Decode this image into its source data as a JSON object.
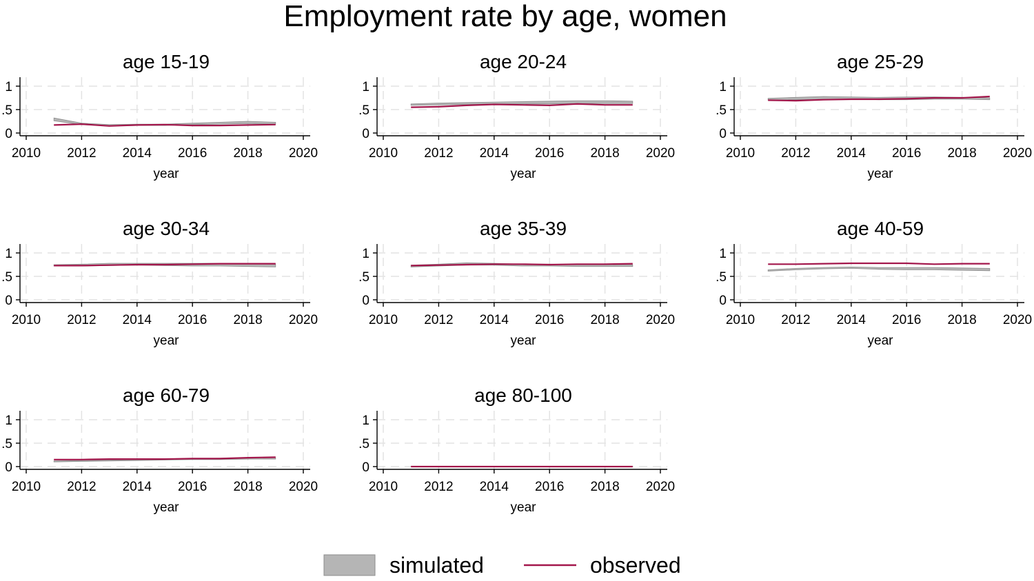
{
  "title": "Employment rate by age, women",
  "legend": {
    "position": "bottom",
    "items": [
      {
        "label": "simulated",
        "kind": "band",
        "color": "#b5b5b5"
      },
      {
        "label": "observed",
        "kind": "line",
        "color": "#a3164b"
      }
    ]
  },
  "colors": {
    "simulated_band": "#b5b5b5",
    "simulated_edge": "#8c8c8c",
    "observed": "#a3164b",
    "grid": "#e3e3e3",
    "axis": "#000000"
  },
  "chart_data": [
    {
      "type": "area",
      "title": "age 15-19",
      "xlabel": "year",
      "ylabel": "",
      "xlim": [
        2010,
        2020
      ],
      "ylim": [
        0,
        1
      ],
      "xticks": [
        "2010",
        "2012",
        "2014",
        "2016",
        "2018",
        "2020"
      ],
      "yticks": [
        "0",
        ".5",
        "1"
      ],
      "grid": true,
      "x": [
        2011,
        2012,
        2013,
        2014,
        2015,
        2016,
        2017,
        2018,
        2019
      ],
      "series": [
        {
          "name": "simulated",
          "kind": "band",
          "lower": [
            0.26,
            0.18,
            0.15,
            0.16,
            0.16,
            0.18,
            0.19,
            0.2,
            0.19
          ],
          "upper": [
            0.32,
            0.21,
            0.18,
            0.19,
            0.19,
            0.21,
            0.23,
            0.25,
            0.23
          ]
        },
        {
          "name": "observed",
          "kind": "line",
          "values": [
            0.17,
            0.19,
            0.15,
            0.17,
            0.18,
            0.16,
            0.16,
            0.17,
            0.18
          ]
        }
      ]
    },
    {
      "type": "area",
      "title": "age 20-24",
      "xlabel": "year",
      "ylabel": "",
      "xlim": [
        2010,
        2020
      ],
      "ylim": [
        0,
        1
      ],
      "xticks": [
        "2010",
        "2012",
        "2014",
        "2016",
        "2018",
        "2020"
      ],
      "yticks": [
        "0",
        ".5",
        "1"
      ],
      "grid": true,
      "x": [
        2011,
        2012,
        2013,
        2014,
        2015,
        2016,
        2017,
        2018,
        2019
      ],
      "series": [
        {
          "name": "simulated",
          "kind": "band",
          "lower": [
            0.59,
            0.6,
            0.61,
            0.62,
            0.62,
            0.62,
            0.63,
            0.63,
            0.63
          ],
          "upper": [
            0.62,
            0.64,
            0.65,
            0.66,
            0.67,
            0.68,
            0.69,
            0.69,
            0.68
          ]
        },
        {
          "name": "observed",
          "kind": "line",
          "values": [
            0.55,
            0.56,
            0.59,
            0.61,
            0.6,
            0.59,
            0.62,
            0.6,
            0.6
          ]
        }
      ]
    },
    {
      "type": "area",
      "title": "age 25-29",
      "xlabel": "year",
      "ylabel": "",
      "xlim": [
        2010,
        2020
      ],
      "ylim": [
        0,
        1
      ],
      "xticks": [
        "2010",
        "2012",
        "2014",
        "2016",
        "2018",
        "2020"
      ],
      "yticks": [
        "0",
        ".5",
        "1"
      ],
      "grid": true,
      "x": [
        2011,
        2012,
        2013,
        2014,
        2015,
        2016,
        2017,
        2018,
        2019
      ],
      "series": [
        {
          "name": "simulated",
          "kind": "band",
          "lower": [
            0.7,
            0.71,
            0.72,
            0.72,
            0.71,
            0.71,
            0.72,
            0.72,
            0.71
          ],
          "upper": [
            0.74,
            0.76,
            0.78,
            0.77,
            0.76,
            0.77,
            0.77,
            0.76,
            0.75
          ]
        },
        {
          "name": "observed",
          "kind": "line",
          "values": [
            0.7,
            0.69,
            0.71,
            0.72,
            0.72,
            0.73,
            0.75,
            0.75,
            0.78
          ]
        }
      ]
    },
    {
      "type": "area",
      "title": "age 30-34",
      "xlabel": "year",
      "ylabel": "",
      "xlim": [
        2010,
        2020
      ],
      "ylim": [
        0,
        1
      ],
      "xticks": [
        "2010",
        "2012",
        "2014",
        "2016",
        "2018",
        "2020"
      ],
      "yticks": [
        "0",
        ".5",
        "1"
      ],
      "grid": true,
      "x": [
        2011,
        2012,
        2013,
        2014,
        2015,
        2016,
        2017,
        2018,
        2019
      ],
      "series": [
        {
          "name": "simulated",
          "kind": "band",
          "lower": [
            0.72,
            0.72,
            0.73,
            0.74,
            0.73,
            0.72,
            0.72,
            0.71,
            0.7
          ],
          "upper": [
            0.75,
            0.76,
            0.78,
            0.78,
            0.78,
            0.78,
            0.78,
            0.77,
            0.76
          ]
        },
        {
          "name": "observed",
          "kind": "line",
          "values": [
            0.73,
            0.73,
            0.74,
            0.75,
            0.75,
            0.76,
            0.77,
            0.77,
            0.77
          ]
        }
      ]
    },
    {
      "type": "area",
      "title": "age 35-39",
      "xlabel": "year",
      "ylabel": "",
      "xlim": [
        2010,
        2020
      ],
      "ylim": [
        0,
        1
      ],
      "xticks": [
        "2010",
        "2012",
        "2014",
        "2016",
        "2018",
        "2020"
      ],
      "yticks": [
        "0",
        ".5",
        "1"
      ],
      "grid": true,
      "x": [
        2011,
        2012,
        2013,
        2014,
        2015,
        2016,
        2017,
        2018,
        2019
      ],
      "series": [
        {
          "name": "simulated",
          "kind": "band",
          "lower": [
            0.7,
            0.72,
            0.74,
            0.74,
            0.72,
            0.72,
            0.71,
            0.71,
            0.71
          ],
          "upper": [
            0.74,
            0.76,
            0.79,
            0.78,
            0.76,
            0.76,
            0.75,
            0.75,
            0.75
          ]
        },
        {
          "name": "observed",
          "kind": "line",
          "values": [
            0.73,
            0.74,
            0.75,
            0.76,
            0.76,
            0.75,
            0.76,
            0.76,
            0.77
          ]
        }
      ]
    },
    {
      "type": "area",
      "title": "age 40-59",
      "xlabel": "year",
      "ylabel": "",
      "xlim": [
        2010,
        2020
      ],
      "ylim": [
        0,
        1
      ],
      "xticks": [
        "2010",
        "2012",
        "2014",
        "2016",
        "2018",
        "2020"
      ],
      "yticks": [
        "0",
        ".5",
        "1"
      ],
      "grid": true,
      "x": [
        2011,
        2012,
        2013,
        2014,
        2015,
        2016,
        2017,
        2018,
        2019
      ],
      "series": [
        {
          "name": "simulated",
          "kind": "band",
          "lower": [
            0.61,
            0.64,
            0.66,
            0.67,
            0.65,
            0.64,
            0.64,
            0.63,
            0.62
          ],
          "upper": [
            0.64,
            0.67,
            0.69,
            0.7,
            0.69,
            0.69,
            0.69,
            0.68,
            0.67
          ]
        },
        {
          "name": "observed",
          "kind": "line",
          "values": [
            0.76,
            0.76,
            0.77,
            0.78,
            0.78,
            0.78,
            0.76,
            0.77,
            0.77
          ]
        }
      ]
    },
    {
      "type": "area",
      "title": "age 60-79",
      "xlabel": "year",
      "ylabel": "",
      "xlim": [
        2010,
        2020
      ],
      "ylim": [
        0,
        1
      ],
      "xticks": [
        "2010",
        "2012",
        "2014",
        "2016",
        "2018",
        "2020"
      ],
      "yticks": [
        "0",
        ".5",
        "1"
      ],
      "grid": true,
      "x": [
        2011,
        2012,
        2013,
        2014,
        2015,
        2016,
        2017,
        2018,
        2019
      ],
      "series": [
        {
          "name": "simulated",
          "kind": "band",
          "lower": [
            0.1,
            0.11,
            0.12,
            0.13,
            0.14,
            0.15,
            0.15,
            0.16,
            0.16
          ],
          "upper": [
            0.12,
            0.13,
            0.14,
            0.15,
            0.16,
            0.17,
            0.18,
            0.19,
            0.19
          ]
        },
        {
          "name": "observed",
          "kind": "line",
          "values": [
            0.15,
            0.15,
            0.16,
            0.16,
            0.16,
            0.17,
            0.17,
            0.19,
            0.2
          ]
        }
      ]
    },
    {
      "type": "area",
      "title": "age 80-100",
      "xlabel": "year",
      "ylabel": "",
      "xlim": [
        2010,
        2020
      ],
      "ylim": [
        0,
        1
      ],
      "xticks": [
        "2010",
        "2012",
        "2014",
        "2016",
        "2018",
        "2020"
      ],
      "yticks": [
        "0",
        ".5",
        "1"
      ],
      "grid": true,
      "x": [
        2011,
        2012,
        2013,
        2014,
        2015,
        2016,
        2017,
        2018,
        2019
      ],
      "series": [
        {
          "name": "simulated",
          "kind": "band",
          "lower": [
            0,
            0,
            0,
            0,
            0,
            0,
            0,
            0,
            0
          ],
          "upper": [
            0.005,
            0.005,
            0.005,
            0.005,
            0.005,
            0.005,
            0.005,
            0.005,
            0.005
          ]
        },
        {
          "name": "observed",
          "kind": "line",
          "values": [
            0,
            0,
            0,
            0,
            0,
            0,
            0,
            0,
            0
          ]
        }
      ]
    }
  ]
}
